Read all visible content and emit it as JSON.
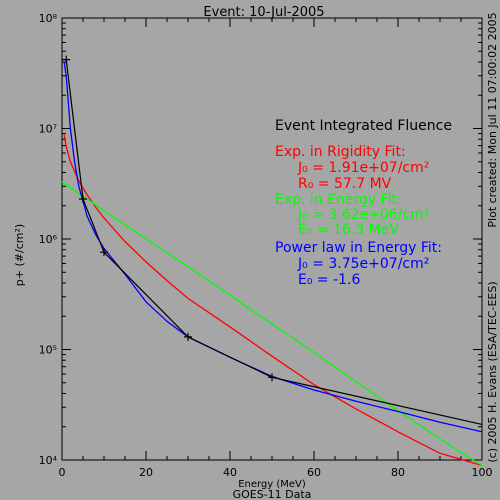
{
  "chart_data": {
    "type": "line",
    "title": "Event: 10-Jul-2005",
    "xlabel": "Energy (MeV)",
    "ylabel": "p+ (#/cm²)",
    "subcaption": "GOES-11 Data",
    "side_right": "Plot created: Mon Jul 11 07:00:02 2005",
    "side_left": "(c) 2005 H. Evans (ESA/TEC-EES)",
    "xlim": [
      0,
      100
    ],
    "ylim": [
      10000,
      100000000
    ],
    "yscale": "log",
    "x_ticks": [
      0,
      20,
      40,
      60,
      80,
      100
    ],
    "x_tick_labels": [
      "0",
      "20",
      "40",
      "60",
      "80",
      "100"
    ],
    "y_ticks": [
      10000,
      100000,
      1000000,
      10000000,
      100000000
    ],
    "y_tick_labels": [
      "10⁴",
      "10⁵",
      "10⁶",
      "10⁷",
      "10⁸"
    ],
    "legend": {
      "heading": "Event Integrated Fluence",
      "rigidity": {
        "title": "Exp. in Rigidity Fit:",
        "line1": "J₀ = 1.91e+07/cm²",
        "line2": "R₀ =  57.7 MV"
      },
      "energy": {
        "title": "Exp. in Energy Fit:",
        "line1": "J₀ = 3.62e+06/cm²",
        "line2": "E₀ =  16.3 MeV"
      },
      "power": {
        "title": "Power law in Energy Fit:",
        "line1": "J₀ = 3.75e+07/cm²",
        "line2": "E₀ =  -1.6"
      }
    },
    "series": [
      {
        "color": "#000000",
        "marker": "plus",
        "x": [
          1,
          5,
          10,
          30,
          50,
          100
        ],
        "y": [
          42000000,
          2300000,
          760000,
          130000,
          56000,
          21000
        ]
      },
      {
        "color": "#ff0000",
        "x": [
          0.5,
          1,
          2,
          4,
          6,
          8,
          10,
          15,
          20,
          25,
          30,
          40,
          50,
          60,
          70,
          80,
          90,
          100
        ],
        "y": [
          8800000,
          6900000,
          5000000,
          3350000,
          2500000,
          1950000,
          1550000,
          950000,
          620000,
          420000,
          290000,
          160000,
          87000,
          48000,
          29000,
          18000,
          11500,
          8000
        ]
      },
      {
        "color": "#00ff00",
        "x": [
          0,
          10,
          20,
          30,
          40,
          50,
          60,
          70,
          80,
          90,
          100
        ],
        "y": [
          3300000,
          1800000,
          1000000,
          560000,
          310000,
          170000,
          94000,
          51000,
          28000,
          15500,
          8500
        ]
      },
      {
        "color": "#0000ff",
        "x": [
          0.5,
          1,
          2,
          3,
          4,
          5,
          6,
          8,
          10,
          15,
          20,
          25,
          30,
          40,
          50,
          60,
          70,
          80,
          90,
          100
        ],
        "y": [
          40000000,
          30000000,
          10000000,
          5000000,
          3000000,
          2200000,
          1600000,
          1100000,
          820000,
          480000,
          270000,
          180000,
          130000,
          85000,
          57000,
          43000,
          34000,
          27500,
          22000,
          18000
        ]
      }
    ]
  }
}
